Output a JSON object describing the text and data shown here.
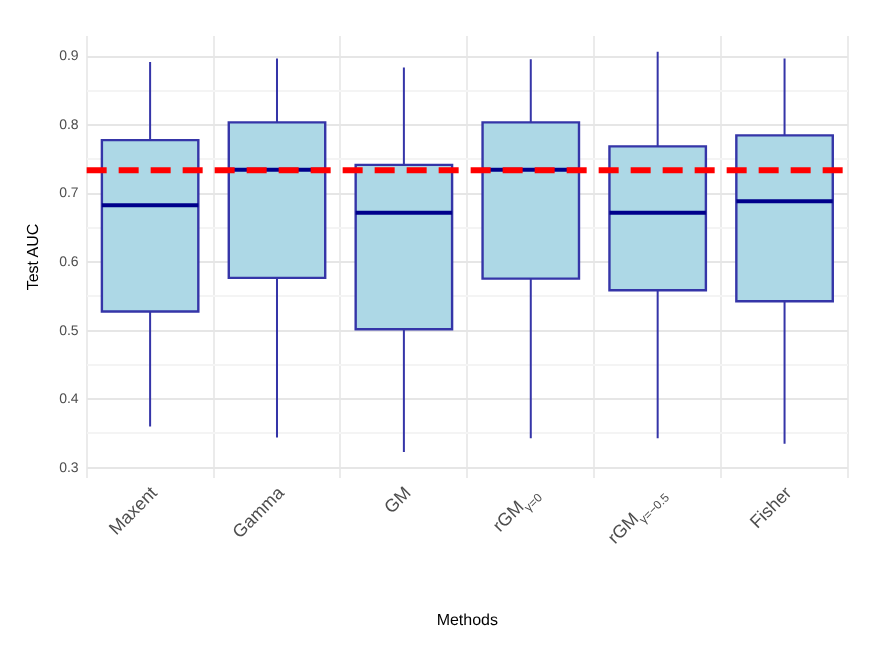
{
  "chart_data": {
    "type": "box",
    "xlabel": "Methods",
    "ylabel": "Test AUC",
    "categories": [
      "Maxent",
      "Gamma",
      "GM",
      "rGM$_{γ=0}$",
      "rGM$_{γ=−0.5}$",
      "Fisher"
    ],
    "series": [
      {
        "color": "#add8e6",
        "boxes": [
          {
            "low": 0.36,
            "q1": 0.528,
            "median": 0.683,
            "q3": 0.778,
            "high": 0.892
          },
          {
            "low": 0.344,
            "q1": 0.577,
            "median": 0.735,
            "q3": 0.804,
            "high": 0.897
          },
          {
            "low": 0.323,
            "q1": 0.502,
            "median": 0.672,
            "q3": 0.742,
            "high": 0.884
          },
          {
            "low": 0.343,
            "q1": 0.576,
            "median": 0.735,
            "q3": 0.804,
            "high": 0.896
          },
          {
            "low": 0.343,
            "q1": 0.559,
            "median": 0.672,
            "q3": 0.769,
            "high": 0.907
          },
          {
            "low": 0.335,
            "q1": 0.543,
            "median": 0.689,
            "q3": 0.785,
            "high": 0.897
          }
        ]
      }
    ],
    "ylim": [
      0.285,
      0.93
    ],
    "yticks": [
      0.3,
      {
        "value": 0.35,
        "label": null
      },
      0.4,
      {
        "value": 0.45,
        "label": null
      },
      0.5,
      {
        "value": 0.55,
        "label": null
      },
      0.6,
      {
        "value": 0.65,
        "label": null
      },
      0.7,
      {
        "value": 0.75,
        "label": null
      },
      0.8,
      {
        "value": 0.85,
        "label": null
      },
      0.9
    ],
    "ref_lines": [
      {
        "axis": "y",
        "value": 0.734,
        "color": "#ff0000",
        "line_style": "dashed"
      }
    ],
    "grid": true,
    "legend": false
  }
}
